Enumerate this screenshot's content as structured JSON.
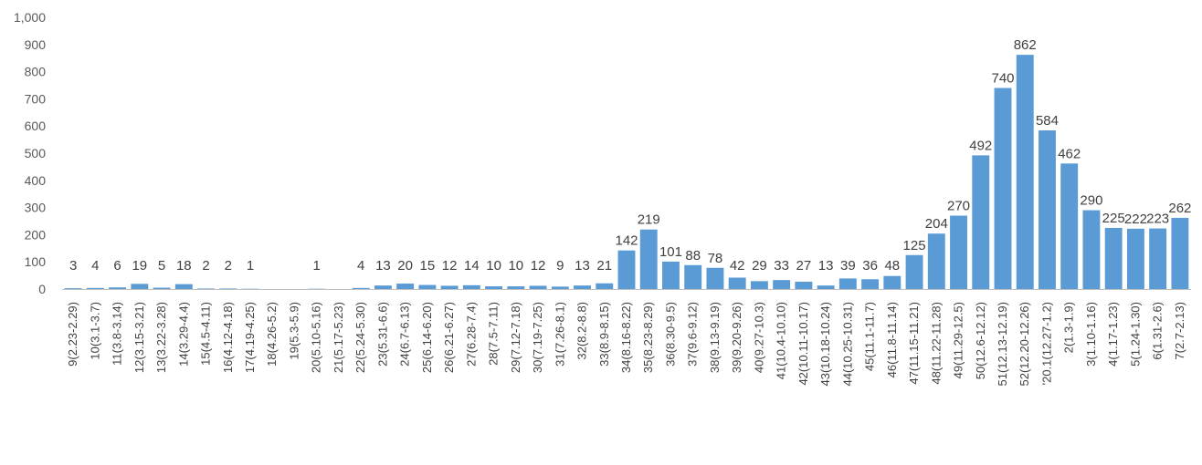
{
  "chart_data": {
    "type": "bar",
    "categories": [
      "9(2.23-2.29)",
      "10(3.1-3.7)",
      "11(3.8-3.14)",
      "12(3.15-3.21)",
      "13(3.22-3.28)",
      "14(3.29-4.4)",
      "15(4.5-4.11)",
      "16(4.12-4.18)",
      "17(4.19-4.25)",
      "18(4.26-5.2)",
      "19(5.3-5.9)",
      "20(5.10-5.16)",
      "21(5.17-5.23)",
      "22(5.24-5.30)",
      "23(5.31-6.6)",
      "24(6.7-6.13)",
      "25(6.14-6.20)",
      "26(6.21-6.27)",
      "27(6.28-7.4)",
      "28(7.5-7.11)",
      "29(7.12-7.18)",
      "30(7.19-7.25)",
      "31(7.26-8.1)",
      "32(8.2-8.8)",
      "33(8.9-8.15)",
      "34(8.16-8.22)",
      "35(8.23-8.29)",
      "36(8.30-9.5)",
      "37(9.6-9.12)",
      "38(9.13-9.19)",
      "39(9.20-9.26)",
      "40(9.27-10.3)",
      "41(10.4-10.10)",
      "42(10.11-10.17)",
      "43(10.18-10.24)",
      "44(10.25-10.31)",
      "45(11.1-11.7)",
      "46(11.8-11.14)",
      "47(11.15-11.21)",
      "48(11.22-11.28)",
      "49(11.29-12.5)",
      "50(12.6-12.12)",
      "51(12.13-12.19)",
      "52(12.20-12.26)",
      "'20.1(12.27-1.2)",
      "2(1.3-1.9)",
      "3(1.10-1.16)",
      "4(1.17-1.23)",
      "5(1.24-1.30)",
      "6(1.31-2.6)",
      "7(2.7-2.13)"
    ],
    "values": [
      3,
      4,
      6,
      19,
      5,
      18,
      2,
      2,
      1,
      0,
      0,
      1,
      0,
      4,
      13,
      20,
      15,
      12,
      14,
      10,
      10,
      12,
      9,
      13,
      21,
      142,
      219,
      101,
      88,
      78,
      42,
      29,
      33,
      27,
      13,
      39,
      36,
      48,
      125,
      204,
      270,
      492,
      740,
      862,
      584,
      462,
      290,
      225,
      222,
      223,
      262
    ],
    "data_labels": [
      "3",
      "4",
      "6",
      "19",
      "5",
      "18",
      "2",
      "2",
      "1",
      "",
      "",
      "1",
      "",
      "4",
      "13",
      "20",
      "15",
      "12",
      "14",
      "10",
      "10",
      "12",
      "9",
      "13",
      "21",
      "142",
      "219",
      "101",
      "88",
      "78",
      "42",
      "29",
      "33",
      "27",
      "13",
      "39",
      "36",
      "48",
      "125",
      "204",
      "270",
      "492",
      "740",
      "862",
      "584",
      "462",
      "290",
      "225",
      "222",
      "223",
      "262"
    ],
    "ylim": [
      0,
      1000
    ],
    "yticks": [
      "0",
      "100",
      "200",
      "300",
      "400",
      "500",
      "600",
      "700",
      "800",
      "900",
      "1,000"
    ],
    "grid": false,
    "bar_color": "#5B9BD5",
    "title": "",
    "xlabel": "",
    "ylabel": ""
  }
}
